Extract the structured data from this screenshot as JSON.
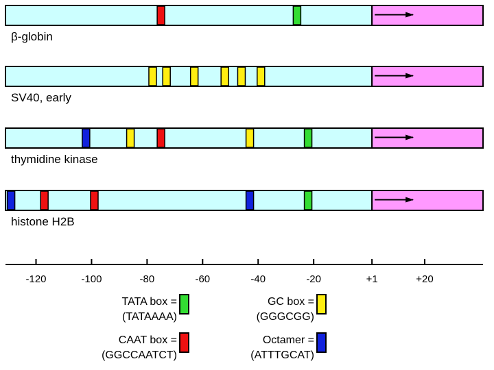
{
  "colors": {
    "promoter_region": "#ccffff",
    "transcribed_region": "#ff99ff",
    "TATA": "#33dd33",
    "CAAT": "#ee1111",
    "GC": "#ffee11",
    "Octamer": "#1122dd"
  },
  "promoters": [
    {
      "label": "β-globin",
      "elements": [
        {
          "type": "CAAT",
          "position": -75
        },
        {
          "type": "TATA",
          "position": -26
        }
      ]
    },
    {
      "label": "SV40, early",
      "elements": [
        {
          "type": "GC",
          "position": -78
        },
        {
          "type": "GC",
          "position": -73
        },
        {
          "type": "GC",
          "position": -63
        },
        {
          "type": "GC",
          "position": -52
        },
        {
          "type": "GC",
          "position": -46
        },
        {
          "type": "GC",
          "position": -39
        }
      ]
    },
    {
      "label": "thymidine kinase",
      "elements": [
        {
          "type": "Octamer",
          "position": -102
        },
        {
          "type": "GC",
          "position": -86
        },
        {
          "type": "CAAT",
          "position": -75
        },
        {
          "type": "GC",
          "position": -43
        },
        {
          "type": "TATA",
          "position": -22
        }
      ]
    },
    {
      "label": "histone H2B",
      "elements": [
        {
          "type": "Octamer",
          "position": -129
        },
        {
          "type": "CAAT",
          "position": -117
        },
        {
          "type": "CAAT",
          "position": -99
        },
        {
          "type": "Octamer",
          "position": -43
        },
        {
          "type": "TATA",
          "position": -22
        }
      ]
    }
  ],
  "axis": {
    "min": -131,
    "max": 41,
    "ticks": [
      -120,
      -100,
      -80,
      -60,
      -40,
      -20,
      1,
      20
    ],
    "tick_labels": [
      "-120",
      "-100",
      "-80",
      "-60",
      "-40",
      "-20",
      "+1",
      "+20"
    ]
  },
  "legend": [
    {
      "type": "TATA",
      "name": "TATA box =",
      "sequence": "(TATAAAA)"
    },
    {
      "type": "GC",
      "name": "GC box =",
      "sequence": "(GGGCGG)"
    },
    {
      "type": "CAAT",
      "name": "CAAT box =",
      "sequence": "(GGCCAATCT)"
    },
    {
      "type": "Octamer",
      "name": "Octamer =",
      "sequence": "(ATTTGCAT)"
    }
  ]
}
